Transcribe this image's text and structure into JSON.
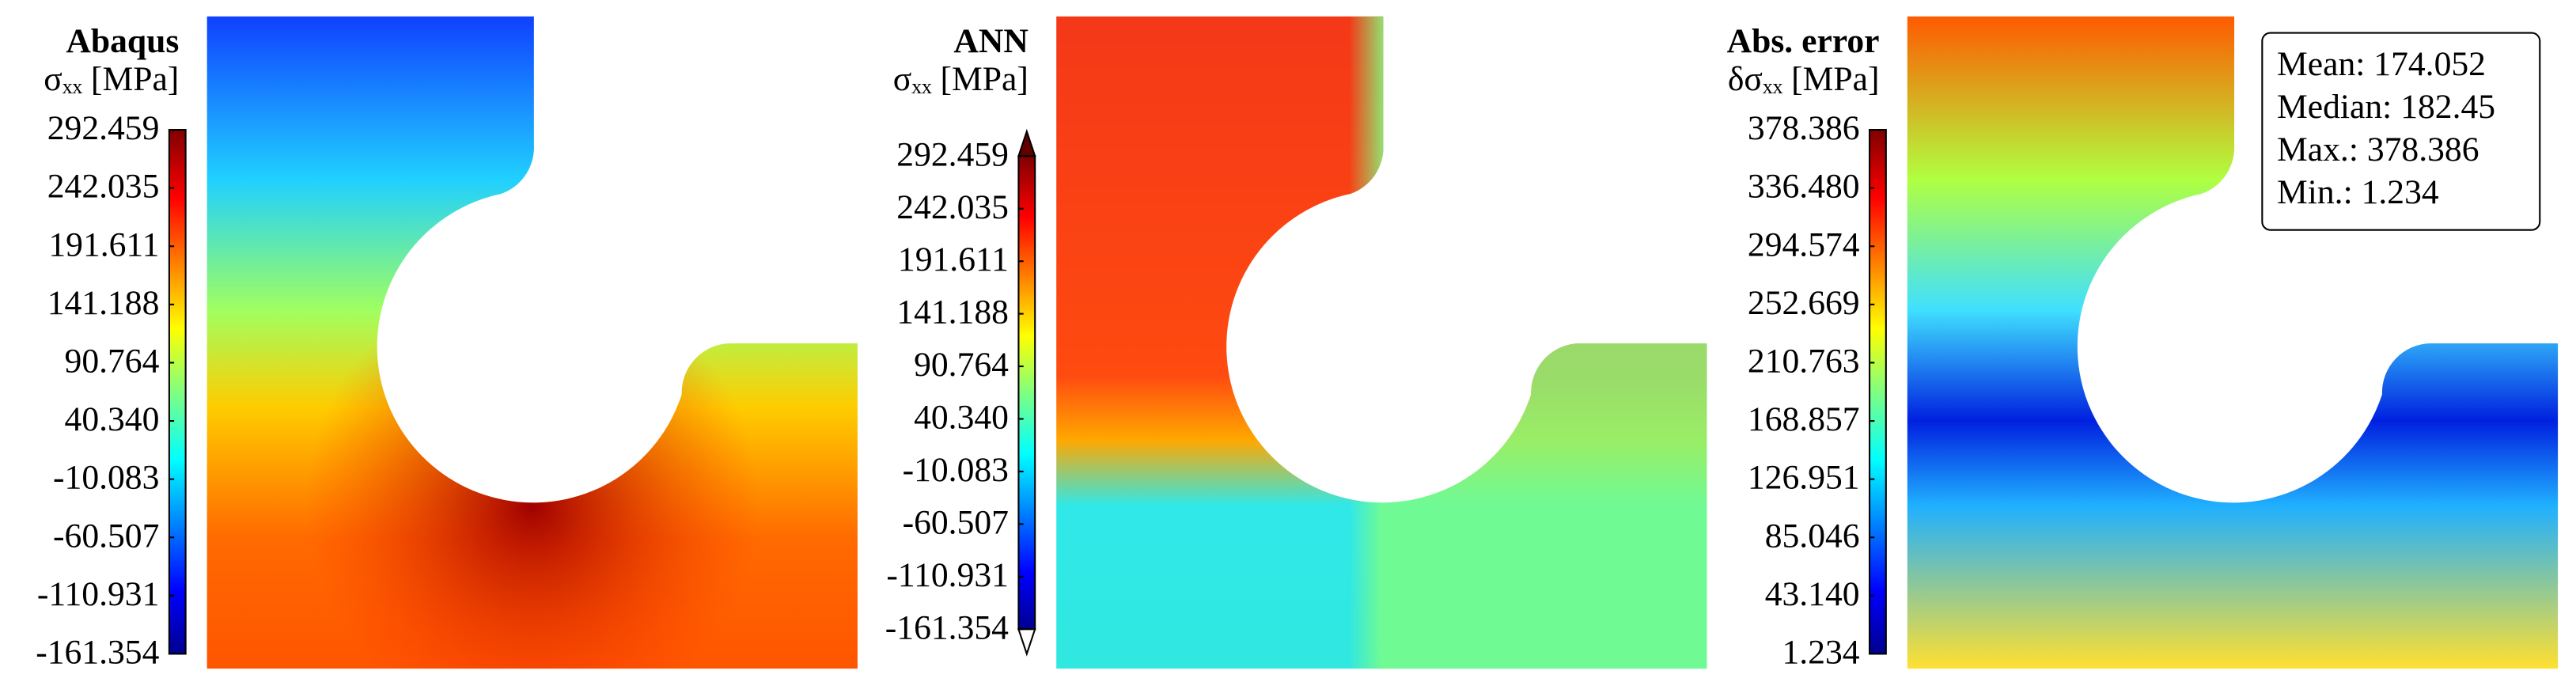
{
  "chart_data": [
    {
      "type": "contour",
      "title": "Abaqus",
      "colorbar_label": "σₓₓ [MPa]",
      "colormap": "jet",
      "extend": false,
      "clim": [
        -161.354,
        292.459
      ],
      "cticks": [
        292.459,
        242.035,
        191.611,
        141.188,
        {
          "value": 90.764,
          "label": "90.764"
        },
        {
          "value": 40.34,
          "label": "40.340"
        },
        -10.083,
        -60.507,
        -110.931,
        -161.354
      ]
    },
    {
      "type": "contour",
      "title": "ANN",
      "colorbar_label": "σₓₓ [MPa]",
      "colormap": "jet",
      "extend": true,
      "clim": [
        -161.354,
        292.459
      ],
      "cticks": [
        292.459,
        242.035,
        191.611,
        141.188,
        {
          "value": 90.764,
          "label": "90.764"
        },
        {
          "value": 40.34,
          "label": "40.340"
        },
        -10.083,
        -60.507,
        -110.931,
        -161.354
      ]
    },
    {
      "type": "contour",
      "title": "Abs. error",
      "colorbar_label": "δσₓₓ [MPa]",
      "colormap": "jet",
      "extend": false,
      "clim": [
        1.234,
        378.386
      ],
      "cticks": [
        378.386,
        {
          "value": 336.48,
          "label": "336.480"
        },
        294.574,
        252.669,
        210.763,
        168.857,
        126.951,
        85.046,
        {
          "value": 43.14,
          "label": "43.140"
        },
        1.234
      ],
      "annotations": [
        "Mean: 174.052",
        "Median: 182.45",
        "Max.: 378.386",
        "Min.: 1.234"
      ]
    }
  ]
}
